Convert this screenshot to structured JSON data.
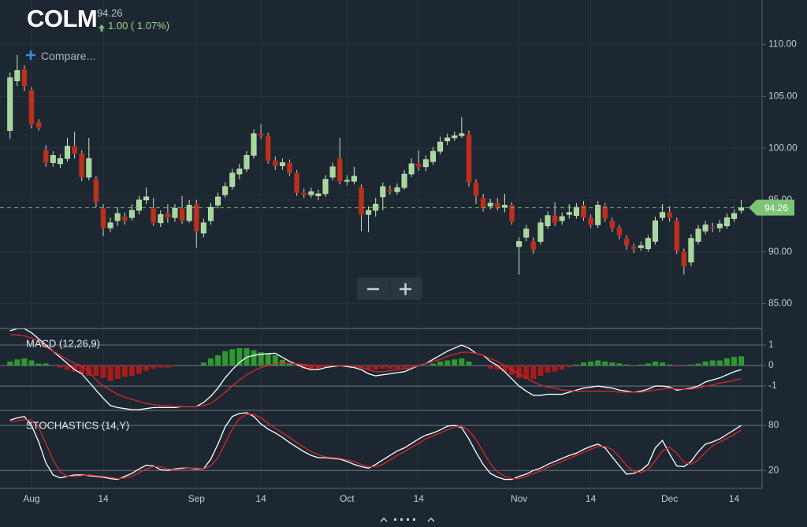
{
  "header": {
    "symbol": "COLM",
    "change": "1.00 ( 1.07%)",
    "compare": "Compare..."
  },
  "chart_data": [
    {
      "type": "candlestick",
      "up_color": "#a6d89a",
      "down_color": "#b8321f",
      "xlim": [
        -1.4,
        104.9
      ],
      "xticks": [
        {
          "value": 3,
          "label": "Aug"
        },
        {
          "value": 13,
          "label": "14"
        },
        {
          "value": 26,
          "label": "Sep"
        },
        {
          "value": 35,
          "label": "14"
        },
        {
          "value": 47,
          "label": "Oct"
        },
        {
          "value": 57,
          "label": "14"
        },
        {
          "value": 71,
          "label": "Nov"
        },
        {
          "value": 81,
          "label": "14"
        },
        {
          "value": 92,
          "label": "Dec"
        },
        {
          "value": 101,
          "label": "14"
        }
      ],
      "ylim": [
        82.6,
        114.3
      ],
      "yticks": [
        {
          "value": 85,
          "label": "85.00"
        },
        {
          "value": 90,
          "label": "90.00"
        },
        {
          "value": 95,
          "label": "95.00"
        },
        {
          "value": 100,
          "label": "100.00"
        },
        {
          "value": 105,
          "label": "105.00"
        },
        {
          "value": 110,
          "label": "110.00"
        }
      ],
      "grid": true,
      "open": [
        101.7,
        106.5,
        107.6,
        105.6,
        102.5,
        99.8,
        98.6,
        98.5,
        99.0,
        100.2,
        99.5,
        97.2,
        97.0,
        94.2,
        92.3,
        93.0,
        93.4,
        93.3,
        94.0,
        95.0,
        94.2,
        92.8,
        93.7,
        93.3,
        94.2,
        93.0,
        94.6,
        91.8,
        93.0,
        94.5,
        95.5,
        96.3,
        97.5,
        98.0,
        99.3,
        101.4,
        101.2,
        98.8,
        98.3,
        98.6,
        97.6,
        95.7,
        95.5,
        95.4,
        95.6,
        97.2,
        99.0,
        96.8,
        96.8,
        96.2,
        93.6,
        94.0,
        95.3,
        96.0,
        95.8,
        96.2,
        97.5,
        98.5,
        98.2,
        98.7,
        99.7,
        100.7,
        101.0,
        101.2,
        101.3,
        96.7,
        95.2,
        94.4,
        94.7,
        94.3,
        94.5,
        90.5,
        91.4,
        91.0,
        91.0,
        92.5,
        93.5,
        93.0,
        93.6,
        93.5,
        94.5,
        93.3,
        92.6,
        94.4,
        93.0,
        92.3,
        91.3,
        90.5,
        90.4,
        90.3,
        91.0,
        93.3,
        93.8,
        93.0,
        90.0,
        89.0,
        91.0,
        92.0,
        92.4,
        92.3,
        92.5,
        93.2,
        94.0
      ],
      "high": [
        107.3,
        109.0,
        108.0,
        105.9,
        102.8,
        100.3,
        99.7,
        99.4,
        101.0,
        101.6,
        99.8,
        101.0,
        97.3,
        94.6,
        93.3,
        94.3,
        93.8,
        94.6,
        95.4,
        96.2,
        95.2,
        94.0,
        94.6,
        94.6,
        95.4,
        95.0,
        95.0,
        93.2,
        94.7,
        95.7,
        96.7,
        98.0,
        98.5,
        99.7,
        101.8,
        102.3,
        101.5,
        99.2,
        99.0,
        98.9,
        97.9,
        96.1,
        96.2,
        96.0,
        97.4,
        98.6,
        101.0,
        97.4,
        98.2,
        96.5,
        94.4,
        95.2,
        96.7,
        96.4,
        96.6,
        97.9,
        99.0,
        99.8,
        99.3,
        100.1,
        101.1,
        101.4,
        101.6,
        103.0,
        101.7,
        97.0,
        95.6,
        95.1,
        95.2,
        95.6,
        94.8,
        91.4,
        92.6,
        91.4,
        93.2,
        93.9,
        94.8,
        93.8,
        94.6,
        94.7,
        94.9,
        93.6,
        94.9,
        94.7,
        93.3,
        92.6,
        91.6,
        90.8,
        91.0,
        91.6,
        93.4,
        94.6,
        94.4,
        93.3,
        90.3,
        91.7,
        92.6,
        93.0,
        92.8,
        93.1,
        93.7,
        94.1,
        95.0
      ],
      "low": [
        100.9,
        106.0,
        105.5,
        101.9,
        101.7,
        98.2,
        98.2,
        98.1,
        98.7,
        99.0,
        96.8,
        96.9,
        94.3,
        91.5,
        91.9,
        92.5,
        92.6,
        93.0,
        93.6,
        94.6,
        92.5,
        92.4,
        92.8,
        92.9,
        92.7,
        92.8,
        90.4,
        91.4,
        92.6,
        94.2,
        95.2,
        96.0,
        97.0,
        97.7,
        99.0,
        100.9,
        98.5,
        97.9,
        97.9,
        97.3,
        95.4,
        95.2,
        95.2,
        95.0,
        95.3,
        96.9,
        96.5,
        96.4,
        96.5,
        92.0,
        91.9,
        93.4,
        94.0,
        95.5,
        95.5,
        96.0,
        97.2,
        97.8,
        97.8,
        98.4,
        99.4,
        100.3,
        100.7,
        101.0,
        96.3,
        94.6,
        93.9,
        94.1,
        94.0,
        93.8,
        92.6,
        87.8,
        91.0,
        89.8,
        90.7,
        92.2,
        92.5,
        92.6,
        93.2,
        93.2,
        93.0,
        92.3,
        92.3,
        92.9,
        91.9,
        91.2,
        90.2,
        89.9,
        90.1,
        90.0,
        90.7,
        93.0,
        92.9,
        89.8,
        87.8,
        88.6,
        90.7,
        91.7,
        91.9,
        91.9,
        92.2,
        92.9,
        93.7
      ],
      "close": [
        106.8,
        107.5,
        106.0,
        102.3,
        102.0,
        98.6,
        99.3,
        99.0,
        100.2,
        99.5,
        97.2,
        99.0,
        94.8,
        92.3,
        92.8,
        93.7,
        93.0,
        94.0,
        95.0,
        95.3,
        92.8,
        93.6,
        93.3,
        94.2,
        93.0,
        94.5,
        92.0,
        92.8,
        94.3,
        95.3,
        96.3,
        97.6,
        98.0,
        99.3,
        101.4,
        101.2,
        98.8,
        98.3,
        98.6,
        97.6,
        95.7,
        95.5,
        95.8,
        95.6,
        97.0,
        98.2,
        96.8,
        96.9,
        97.3,
        93.6,
        94.0,
        94.6,
        96.3,
        95.8,
        96.2,
        97.5,
        98.5,
        98.2,
        98.9,
        99.7,
        100.6,
        101.0,
        101.2,
        101.4,
        96.7,
        95.4,
        94.2,
        94.7,
        94.3,
        94.5,
        92.9,
        91.0,
        92.2,
        90.2,
        92.8,
        93.5,
        92.8,
        93.4,
        93.8,
        94.3,
        93.3,
        92.6,
        94.5,
        93.2,
        92.3,
        91.6,
        90.6,
        90.3,
        90.6,
        91.3,
        93.0,
        93.8,
        93.3,
        90.1,
        88.6,
        91.3,
        92.2,
        92.6,
        92.3,
        92.7,
        93.3,
        93.7,
        94.26
      ],
      "last_price_color": "#7cc576"
    },
    {
      "type": "macd",
      "title": "MACD (12,26,9)",
      "ylim": [
        -2.15,
        1.77
      ],
      "yticks": [
        1,
        0,
        -1
      ],
      "bars": {
        "up_color": "#2f9a2f",
        "down_color": "#a81c1c",
        "values": [
          0.2,
          0.3,
          0.35,
          0.25,
          0.1,
          0.1,
          0.0,
          -0.1,
          -0.2,
          -0.3,
          -0.4,
          -0.5,
          -0.5,
          -0.6,
          -0.75,
          -0.65,
          -0.55,
          -0.5,
          -0.4,
          -0.25,
          -0.15,
          -0.1,
          -0.1,
          -0.05,
          0.0,
          0.0,
          0.0,
          0.15,
          0.35,
          0.5,
          0.7,
          0.8,
          0.85,
          0.85,
          0.75,
          0.65,
          0.58,
          0.5,
          0.28,
          0.1,
          -0.03,
          -0.15,
          -0.22,
          -0.2,
          -0.08,
          -0.05,
          0.0,
          -0.05,
          -0.05,
          -0.1,
          -0.2,
          -0.2,
          -0.15,
          -0.15,
          -0.15,
          -0.15,
          -0.05,
          0.0,
          0.0,
          0.1,
          0.2,
          0.25,
          0.3,
          0.35,
          0.2,
          0.0,
          0.0,
          -0.15,
          -0.2,
          -0.3,
          -0.45,
          -0.6,
          -0.65,
          -0.65,
          -0.5,
          -0.35,
          -0.3,
          -0.2,
          -0.08,
          0.05,
          0.15,
          0.2,
          0.25,
          0.2,
          0.15,
          0.1,
          0.05,
          0.0,
          0.05,
          0.1,
          0.2,
          0.15,
          0.05,
          -0.05,
          0.0,
          0.05,
          0.1,
          0.2,
          0.25,
          0.25,
          0.35,
          0.42,
          0.45
        ]
      },
      "series": [
        {
          "color": "#ffffff",
          "values": [
            1.7,
            1.8,
            1.8,
            1.6,
            1.3,
            1.0,
            0.7,
            0.4,
            0.1,
            -0.2,
            -0.4,
            -0.8,
            -1.2,
            -1.6,
            -1.95,
            -2.05,
            -2.1,
            -2.15,
            -2.15,
            -2.1,
            -2.05,
            -2.05,
            -2.05,
            -2.05,
            -2.0,
            -2.0,
            -2.0,
            -1.8,
            -1.5,
            -1.1,
            -0.6,
            -0.2,
            0.15,
            0.4,
            0.5,
            0.55,
            0.58,
            0.6,
            0.4,
            0.2,
            0.05,
            -0.1,
            -0.2,
            -0.2,
            -0.1,
            -0.05,
            0.0,
            -0.05,
            -0.1,
            -0.2,
            -0.4,
            -0.5,
            -0.45,
            -0.4,
            -0.35,
            -0.3,
            -0.15,
            0.0,
            0.1,
            0.3,
            0.5,
            0.7,
            0.85,
            1.0,
            0.85,
            0.6,
            0.5,
            0.2,
            0.0,
            -0.3,
            -0.65,
            -1.0,
            -1.25,
            -1.45,
            -1.45,
            -1.4,
            -1.4,
            -1.4,
            -1.3,
            -1.2,
            -1.1,
            -1.05,
            -1.0,
            -1.05,
            -1.1,
            -1.2,
            -1.25,
            -1.3,
            -1.25,
            -1.15,
            -1.0,
            -1.0,
            -1.05,
            -1.2,
            -1.15,
            -1.1,
            -1.0,
            -0.8,
            -0.7,
            -0.6,
            -0.45,
            -0.3,
            -0.2
          ]
        },
        {
          "color": "#d8262c",
          "values": [
            1.5,
            1.5,
            1.45,
            1.35,
            1.2,
            0.9,
            0.7,
            0.5,
            0.3,
            0.1,
            0.0,
            -0.3,
            -0.7,
            -1.0,
            -1.2,
            -1.4,
            -1.55,
            -1.65,
            -1.75,
            -1.85,
            -1.9,
            -1.95,
            -1.95,
            -2.0,
            -2.0,
            -2.0,
            -2.0,
            -1.95,
            -1.85,
            -1.6,
            -1.3,
            -1.0,
            -0.7,
            -0.45,
            -0.25,
            -0.1,
            0.0,
            0.1,
            0.12,
            0.1,
            0.08,
            0.05,
            0.02,
            0.0,
            -0.02,
            0.0,
            0.0,
            0.0,
            -0.05,
            -0.1,
            -0.2,
            -0.3,
            -0.3,
            -0.25,
            -0.2,
            -0.15,
            -0.1,
            0.0,
            0.1,
            0.2,
            0.3,
            0.45,
            0.55,
            0.65,
            0.65,
            0.6,
            0.5,
            0.35,
            0.2,
            0.0,
            -0.2,
            -0.4,
            -0.6,
            -0.8,
            -0.95,
            -1.05,
            -1.1,
            -1.2,
            -1.22,
            -1.25,
            -1.25,
            -1.25,
            -1.25,
            -1.25,
            -1.25,
            -1.3,
            -1.3,
            -1.3,
            -1.3,
            -1.25,
            -1.2,
            -1.15,
            -1.1,
            -1.15,
            -1.15,
            -1.15,
            -1.1,
            -1.0,
            -0.95,
            -0.85,
            -0.8,
            -0.72,
            -0.65
          ]
        }
      ]
    },
    {
      "type": "stochastics",
      "title": "STOCHASTICS (14,Y)",
      "ylim": [
        -4,
        99
      ],
      "yticks": [
        80,
        20
      ],
      "series": [
        {
          "color": "#ffffff",
          "values": [
            87,
            90,
            92,
            80,
            58,
            30,
            14,
            10,
            12,
            14,
            14,
            13,
            12,
            11,
            9,
            8,
            12,
            16,
            22,
            27,
            26,
            21,
            20,
            22,
            23,
            23,
            22,
            22,
            35,
            55,
            78,
            92,
            96,
            97,
            92,
            82,
            75,
            70,
            64,
            57,
            51,
            45,
            40,
            37,
            37,
            36,
            35,
            32,
            28,
            25,
            23,
            28,
            34,
            40,
            46,
            50,
            56,
            62,
            67,
            70,
            74,
            79,
            80,
            77,
            62,
            44,
            28,
            16,
            11,
            8,
            8,
            12,
            15,
            20,
            23,
            28,
            32,
            36,
            40,
            43,
            48,
            52,
            55,
            50,
            38,
            26,
            15,
            16,
            20,
            28,
            50,
            60,
            42,
            26,
            25,
            32,
            45,
            55,
            58,
            62,
            68,
            74,
            80
          ]
        },
        {
          "color": "#d8262c",
          "values": [
            85,
            86,
            88,
            87,
            77,
            56,
            34,
            18,
            12,
            12,
            13,
            14,
            13,
            12,
            11,
            9,
            10,
            12,
            17,
            22,
            25,
            25,
            22,
            21,
            22,
            23,
            23,
            22,
            26,
            37,
            56,
            75,
            89,
            95,
            95,
            90,
            83,
            76,
            70,
            64,
            57,
            51,
            45,
            41,
            38,
            37,
            36,
            34,
            32,
            28,
            25,
            25,
            28,
            34,
            40,
            45,
            51,
            56,
            62,
            66,
            70,
            74,
            78,
            79,
            73,
            61,
            45,
            29,
            18,
            12,
            9,
            9,
            12,
            16,
            19,
            24,
            28,
            32,
            36,
            40,
            44,
            48,
            52,
            52,
            48,
            38,
            26,
            19,
            17,
            21,
            33,
            46,
            51,
            43,
            31,
            28,
            34,
            44,
            53,
            58,
            63,
            68,
            74
          ]
        }
      ]
    }
  ]
}
